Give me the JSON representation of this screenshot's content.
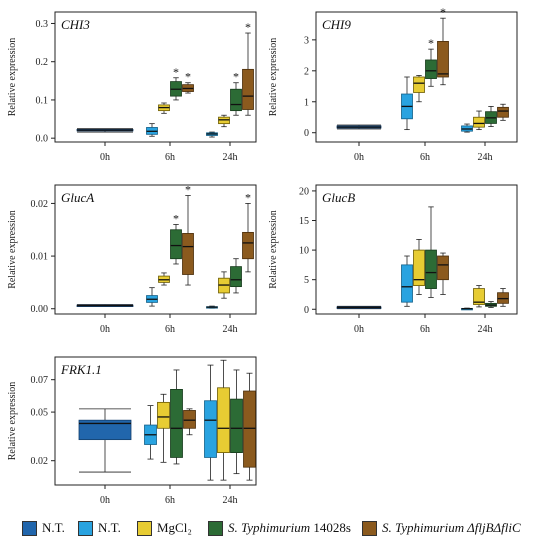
{
  "colors": {
    "nt_dark": "#2166ac",
    "nt_light": "#29a3e0",
    "mgcl2": "#e7cc33",
    "typhimurium": "#2c6b35",
    "mutant": "#8b5a1e"
  },
  "legend": [
    {
      "prefix": "",
      "name": "N.T.",
      "color": "#2166ac"
    },
    {
      "prefix": "",
      "name": "N.T.",
      "color": "#29a3e0"
    },
    {
      "prefix": "",
      "name": "MgCl₂",
      "color": "#e7cc33"
    },
    {
      "prefix": "S. Typhimurium",
      "name": " 14028s",
      "color": "#2c6b35"
    },
    {
      "prefix": "S. Typhimurium",
      "name": " ΔfljBΔfliC",
      "color": "#8b5a1e"
    }
  ],
  "chart_data": [
    {
      "type": "box",
      "title": "CHI3",
      "ylabel": "Relative expression",
      "categories": [
        "0h",
        "6h",
        "24h"
      ],
      "ylim": [
        -0.01,
        0.33
      ],
      "yticks": [
        0.0,
        0.1,
        0.2,
        0.3
      ],
      "ytick_labels": [
        "0.0",
        "0.1",
        "0.2",
        "0.3"
      ],
      "boxes": [
        {
          "cat": 0,
          "offset": 0,
          "wide": true,
          "color": "nt_dark",
          "stats": [
            0.016,
            0.019,
            0.021,
            0.023,
            0.025
          ]
        },
        {
          "cat": 1,
          "offset": -1.5,
          "color": "nt_light",
          "stats": [
            0.005,
            0.01,
            0.018,
            0.028,
            0.038
          ]
        },
        {
          "cat": 1,
          "offset": -0.5,
          "color": "mgcl2",
          "stats": [
            0.065,
            0.072,
            0.08,
            0.087,
            0.092
          ]
        },
        {
          "cat": 1,
          "offset": 0.5,
          "color": "typhimurium",
          "stats": [
            0.1,
            0.11,
            0.128,
            0.148,
            0.158
          ],
          "star": true
        },
        {
          "cat": 1,
          "offset": 1.5,
          "color": "mutant",
          "stats": [
            0.118,
            0.122,
            0.13,
            0.14,
            0.145
          ],
          "star": true
        },
        {
          "cat": 2,
          "offset": -1.5,
          "color": "nt_light",
          "stats": [
            0.003,
            0.007,
            0.011,
            0.014,
            0.016
          ]
        },
        {
          "cat": 2,
          "offset": -0.5,
          "color": "mgcl2",
          "stats": [
            0.03,
            0.038,
            0.048,
            0.055,
            0.06
          ]
        },
        {
          "cat": 2,
          "offset": 0.5,
          "color": "typhimurium",
          "stats": [
            0.06,
            0.072,
            0.088,
            0.128,
            0.145
          ],
          "star": true
        },
        {
          "cat": 2,
          "offset": 1.5,
          "color": "mutant",
          "stats": [
            0.06,
            0.075,
            0.11,
            0.18,
            0.275
          ],
          "star": true
        }
      ]
    },
    {
      "type": "box",
      "title": "CHI9",
      "ylabel": "Relative expression",
      "categories": [
        "0h",
        "6h",
        "24h"
      ],
      "ylim": [
        -0.3,
        3.9
      ],
      "yticks": [
        0,
        1,
        2,
        3
      ],
      "ytick_labels": [
        "0",
        "1",
        "2",
        "3"
      ],
      "boxes": [
        {
          "cat": 0,
          "offset": 0,
          "wide": true,
          "color": "nt_dark",
          "stats": [
            0.12,
            0.15,
            0.18,
            0.22,
            0.25
          ]
        },
        {
          "cat": 1,
          "offset": -1.5,
          "color": "nt_light",
          "stats": [
            0.1,
            0.45,
            0.85,
            1.25,
            1.8
          ]
        },
        {
          "cat": 1,
          "offset": -0.5,
          "color": "mgcl2",
          "stats": [
            1.0,
            1.3,
            1.6,
            1.8,
            1.85
          ]
        },
        {
          "cat": 1,
          "offset": 0.5,
          "color": "typhimurium",
          "stats": [
            1.5,
            1.75,
            2.0,
            2.35,
            2.7
          ],
          "star": true
        },
        {
          "cat": 1,
          "offset": 1.5,
          "color": "mutant",
          "stats": [
            1.55,
            1.8,
            1.9,
            2.95,
            3.7
          ],
          "star": true
        },
        {
          "cat": 2,
          "offset": -1.5,
          "color": "nt_light",
          "stats": [
            0.02,
            0.05,
            0.12,
            0.22,
            0.28
          ]
        },
        {
          "cat": 2,
          "offset": -0.5,
          "color": "mgcl2",
          "stats": [
            0.1,
            0.18,
            0.3,
            0.5,
            0.7
          ]
        },
        {
          "cat": 2,
          "offset": 0.5,
          "color": "typhimurium",
          "stats": [
            0.2,
            0.3,
            0.48,
            0.68,
            0.85
          ]
        },
        {
          "cat": 2,
          "offset": 1.5,
          "color": "mutant",
          "stats": [
            0.4,
            0.5,
            0.7,
            0.82,
            0.92
          ]
        }
      ]
    },
    {
      "type": "box",
      "title": "GlucA",
      "ylabel": "Relative expression",
      "categories": [
        "0h",
        "6h",
        "24h"
      ],
      "ylim": [
        -0.001,
        0.0235
      ],
      "yticks": [
        0.0,
        0.01,
        0.02
      ],
      "ytick_labels": [
        "0.00",
        "0.01",
        "0.02"
      ],
      "boxes": [
        {
          "cat": 0,
          "offset": 0,
          "wide": true,
          "color": "nt_dark",
          "stats": [
            0.0004,
            0.0005,
            0.0006,
            0.0007,
            0.0008
          ]
        },
        {
          "cat": 1,
          "offset": -1.5,
          "color": "nt_light",
          "stats": [
            0.0005,
            0.0012,
            0.0018,
            0.0025,
            0.004
          ]
        },
        {
          "cat": 1,
          "offset": -0.5,
          "color": "mgcl2",
          "stats": [
            0.0045,
            0.005,
            0.0055,
            0.0062,
            0.0068
          ]
        },
        {
          "cat": 1,
          "offset": 0.5,
          "color": "typhimurium",
          "stats": [
            0.0085,
            0.0095,
            0.012,
            0.015,
            0.016
          ],
          "star": true
        },
        {
          "cat": 1,
          "offset": 1.5,
          "color": "mutant",
          "stats": [
            0.0045,
            0.0065,
            0.0118,
            0.0143,
            0.0215
          ],
          "star": true
        },
        {
          "cat": 2,
          "offset": -1.5,
          "color": "nt_light",
          "stats": [
            0.0001,
            0.0002,
            0.0003,
            0.0004,
            0.0005
          ]
        },
        {
          "cat": 2,
          "offset": -0.5,
          "color": "mgcl2",
          "stats": [
            0.002,
            0.003,
            0.0045,
            0.0058,
            0.007
          ]
        },
        {
          "cat": 2,
          "offset": 0.5,
          "color": "typhimurium",
          "stats": [
            0.003,
            0.0042,
            0.0055,
            0.008,
            0.0095
          ]
        },
        {
          "cat": 2,
          "offset": 1.5,
          "color": "mutant",
          "stats": [
            0.007,
            0.0095,
            0.0125,
            0.0145,
            0.02
          ],
          "star": true
        }
      ]
    },
    {
      "type": "box",
      "title": "GlucB",
      "ylabel": "Relative expression",
      "categories": [
        "0h",
        "6h",
        "24h"
      ],
      "ylim": [
        -0.8,
        21
      ],
      "yticks": [
        0,
        5,
        10,
        15,
        20
      ],
      "ytick_labels": [
        "0",
        "5",
        "10",
        "15",
        "20"
      ],
      "boxes": [
        {
          "cat": 0,
          "offset": 0,
          "wide": true,
          "color": "nt_dark",
          "stats": [
            0.1,
            0.2,
            0.3,
            0.4,
            0.5
          ]
        },
        {
          "cat": 1,
          "offset": -1.5,
          "color": "nt_light",
          "stats": [
            0.5,
            1.2,
            3.8,
            7.5,
            9.0
          ]
        },
        {
          "cat": 1,
          "offset": -0.5,
          "color": "mgcl2",
          "stats": [
            2.5,
            4.0,
            5.0,
            10.0,
            11.8
          ]
        },
        {
          "cat": 1,
          "offset": 0.5,
          "color": "typhimurium",
          "stats": [
            2.0,
            3.5,
            6.2,
            10.0,
            17.3
          ]
        },
        {
          "cat": 1,
          "offset": 1.5,
          "color": "mutant",
          "stats": [
            2.5,
            5.0,
            7.5,
            9.0,
            9.5
          ]
        },
        {
          "cat": 2,
          "offset": -1.5,
          "color": "nt_light",
          "stats": [
            0.05,
            0.08,
            0.1,
            0.15,
            0.2
          ]
        },
        {
          "cat": 2,
          "offset": -0.5,
          "color": "mgcl2",
          "stats": [
            0.4,
            0.8,
            1.2,
            3.5,
            4.0
          ]
        },
        {
          "cat": 2,
          "offset": 0.5,
          "color": "typhimurium",
          "stats": [
            0.3,
            0.5,
            0.7,
            1.0,
            1.3
          ]
        },
        {
          "cat": 2,
          "offset": 1.5,
          "color": "mutant",
          "stats": [
            0.5,
            1.0,
            1.8,
            2.8,
            3.5
          ]
        }
      ]
    },
    {
      "type": "box",
      "title": "FRK1.1",
      "ylabel": "Relative expression",
      "categories": [
        "0h",
        "6h",
        "24h"
      ],
      "ylim": [
        0.005,
        0.084
      ],
      "yticks": [
        0.02,
        0.05,
        0.07
      ],
      "ytick_labels": [
        "0.02",
        "0.05",
        "0.07"
      ],
      "boxes": [
        {
          "cat": 0,
          "offset": 0,
          "wide": true,
          "color": "nt_dark",
          "stats": [
            0.013,
            0.033,
            0.043,
            0.045,
            0.052
          ]
        },
        {
          "cat": 1,
          "offset": -1.5,
          "color": "nt_light",
          "stats": [
            0.021,
            0.03,
            0.036,
            0.042,
            0.054
          ]
        },
        {
          "cat": 1,
          "offset": -0.5,
          "color": "mgcl2",
          "stats": [
            0.019,
            0.04,
            0.047,
            0.056,
            0.061
          ]
        },
        {
          "cat": 1,
          "offset": 0.5,
          "color": "typhimurium",
          "stats": [
            0.018,
            0.022,
            0.04,
            0.064,
            0.076
          ]
        },
        {
          "cat": 1,
          "offset": 1.5,
          "color": "mutant",
          "stats": [
            0.036,
            0.04,
            0.045,
            0.051,
            0.052
          ]
        },
        {
          "cat": 2,
          "offset": -1.5,
          "color": "nt_light",
          "stats": [
            0.008,
            0.022,
            0.045,
            0.057,
            0.079
          ]
        },
        {
          "cat": 2,
          "offset": -0.5,
          "color": "mgcl2",
          "stats": [
            0.008,
            0.025,
            0.04,
            0.065,
            0.082
          ]
        },
        {
          "cat": 2,
          "offset": 0.5,
          "color": "typhimurium",
          "stats": [
            0.012,
            0.025,
            0.04,
            0.058,
            0.076
          ]
        },
        {
          "cat": 2,
          "offset": 1.5,
          "color": "mutant",
          "stats": [
            0.008,
            0.016,
            0.04,
            0.063,
            0.074
          ]
        }
      ]
    }
  ]
}
